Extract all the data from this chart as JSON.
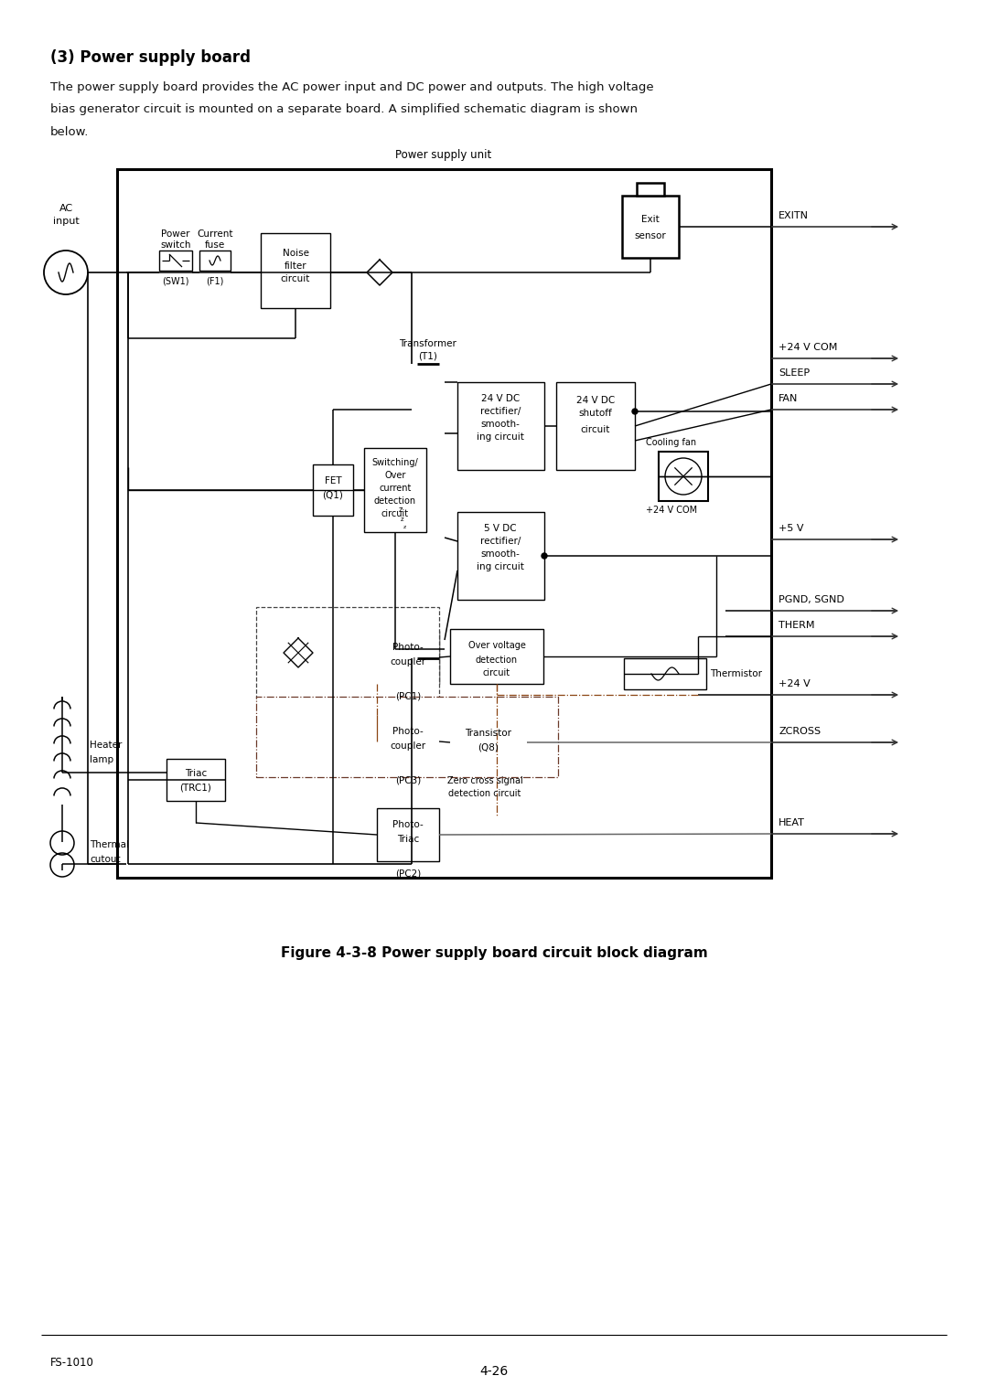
{
  "title": "(3) Power supply board",
  "body_line1": "The power supply board provides the AC power input and DC power and outputs. The high voltage",
  "body_line2": "bias generator circuit is mounted on a separate board. A simplified schematic diagram is shown",
  "body_line3": "below.",
  "figure_caption": "Figure 4-3-8 Power supply board circuit block diagram",
  "footer_left": "FS-1010",
  "footer_center": "4-26",
  "diagram_title": "Power supply unit",
  "bg_color": "#ffffff"
}
